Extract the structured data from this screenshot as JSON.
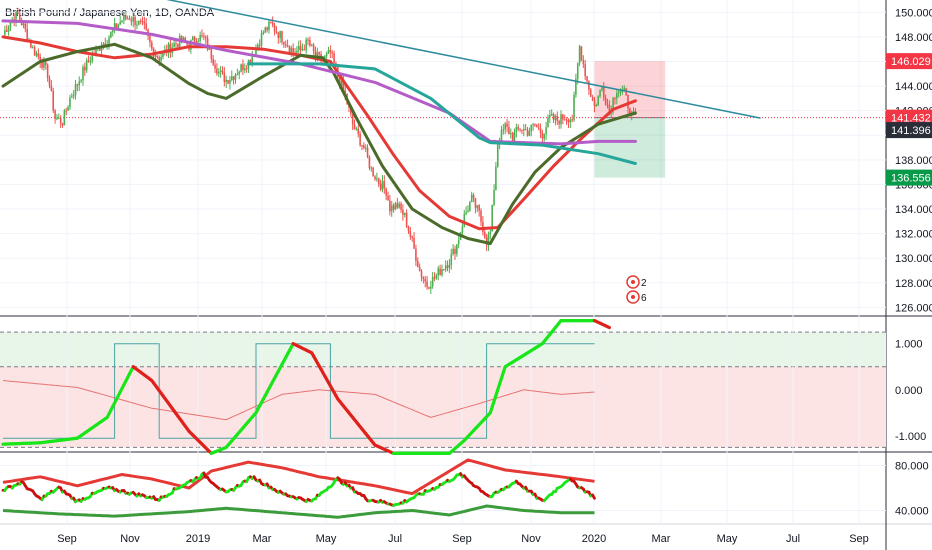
{
  "title": "British Pound / Japanese Yen, 1D, OANDA",
  "colors": {
    "up": "#4caf50",
    "down": "#ef5350",
    "ema_red": "#e53935",
    "ma_green": "#4b6b2a",
    "ma_purple": "#b45cc8",
    "ma_teal": "#26a69a",
    "trendline": "#2c8a9c",
    "ind_bright_green": "#19e619",
    "ind_red": "#e0201a",
    "ind_dark_green": "#3c9c3c",
    "price_tag_red": "#f23645",
    "price_tag_gray": "#2a2e39",
    "price_tag_green": "#089949"
  },
  "chart_data": [
    {
      "type": "candlestick",
      "title": "British Pound / Japanese Yen, 1D, OANDA",
      "y_ticks": [
        126,
        128,
        130,
        132,
        134,
        136,
        138,
        140,
        142,
        144,
        146,
        148,
        150
      ],
      "y_tick_labels": [
        "126.000",
        "128.000",
        "130.000",
        "132.000",
        "134.000",
        "136.000",
        "138.000",
        "",
        "142.000",
        "144.000",
        "146.000",
        "148.000",
        "150.000"
      ],
      "x_ticks": [
        "Sep",
        "Nov",
        "2019",
        "Mar",
        "May",
        "Jul",
        "Sep",
        "Nov",
        "2020",
        "Mar",
        "May",
        "Jul",
        "Sep"
      ],
      "ylim": [
        125.3,
        151.0
      ],
      "price_series_anchors": [
        [
          0,
          148.2
        ],
        [
          4,
          149.3
        ],
        [
          8,
          149.8
        ],
        [
          12,
          148.5
        ],
        [
          16,
          147.0
        ],
        [
          20,
          146.2
        ],
        [
          24,
          145.0
        ],
        [
          28,
          141.4
        ],
        [
          32,
          141.1
        ],
        [
          36,
          143.0
        ],
        [
          40,
          144.2
        ],
        [
          44,
          145.5
        ],
        [
          48,
          146.5
        ],
        [
          52,
          147.2
        ],
        [
          56,
          147.8
        ],
        [
          60,
          148.7
        ],
        [
          64,
          149.4
        ],
        [
          68,
          149.6
        ],
        [
          72,
          149.2
        ],
        [
          76,
          148.7
        ],
        [
          80,
          147.0
        ],
        [
          84,
          146.3
        ],
        [
          88,
          146.9
        ],
        [
          92,
          147.4
        ],
        [
          96,
          147.7
        ],
        [
          100,
          147.3
        ],
        [
          104,
          148.0
        ],
        [
          108,
          147.9
        ],
        [
          112,
          146.5
        ],
        [
          116,
          145.1
        ],
        [
          120,
          144.5
        ],
        [
          124,
          144.9
        ],
        [
          128,
          145.5
        ],
        [
          132,
          146.0
        ],
        [
          136,
          147.1
        ],
        [
          140,
          148.4
        ],
        [
          144,
          149.0
        ],
        [
          148,
          148.3
        ],
        [
          152,
          147.6
        ],
        [
          156,
          146.8
        ],
        [
          160,
          146.9
        ],
        [
          164,
          147.6
        ],
        [
          168,
          146.4
        ],
        [
          172,
          146.1
        ],
        [
          176,
          146.7
        ],
        [
          180,
          144.8
        ],
        [
          184,
          143.2
        ],
        [
          188,
          140.9
        ],
        [
          190,
          140.2
        ],
        [
          194,
          139.0
        ],
        [
          198,
          137.2
        ],
        [
          202,
          136.2
        ],
        [
          206,
          135.5
        ],
        [
          208,
          134.1
        ],
        [
          212,
          134.3
        ],
        [
          216,
          133.4
        ],
        [
          220,
          131.3
        ],
        [
          224,
          129.0
        ],
        [
          228,
          127.8
        ],
        [
          232,
          128.4
        ],
        [
          236,
          129.2
        ],
        [
          240,
          129.8
        ],
        [
          244,
          131.1
        ],
        [
          248,
          133.4
        ],
        [
          252,
          134.8
        ],
        [
          256,
          133.6
        ],
        [
          260,
          131.4
        ],
        [
          262,
          132.1
        ],
        [
          266,
          139.4
        ],
        [
          270,
          140.7
        ],
        [
          274,
          139.9
        ],
        [
          278,
          140.6
        ],
        [
          282,
          140.3
        ],
        [
          286,
          140.8
        ],
        [
          290,
          140.1
        ],
        [
          294,
          141.4
        ],
        [
          298,
          141.2
        ],
        [
          302,
          141.5
        ],
        [
          306,
          141.4
        ],
        [
          310,
          147.2
        ],
        [
          314,
          144.4
        ],
        [
          318,
          142.3
        ],
        [
          322,
          143.9
        ],
        [
          326,
          142.0
        ],
        [
          330,
          143.8
        ],
        [
          334,
          143.4
        ],
        [
          338,
          141.6
        ],
        [
          340,
          141.4
        ]
      ],
      "overlays": [
        {
          "color": "ema_red",
          "points": [
            [
              0,
              148.0
            ],
            [
              20,
              147.5
            ],
            [
              40,
              146.8
            ],
            [
              60,
              146.3
            ],
            [
              80,
              146.6
            ],
            [
              100,
              147.2
            ],
            [
              120,
              147.2
            ],
            [
              140,
              147.0
            ],
            [
              160,
              146.5
            ],
            [
              176,
              146.0
            ],
            [
              184,
              144.2
            ],
            [
              196,
              141.6
            ],
            [
              210,
              138.4
            ],
            [
              224,
              135.5
            ],
            [
              240,
              133.4
            ],
            [
              256,
              132.4
            ],
            [
              266,
              132.5
            ],
            [
              280,
              134.8
            ],
            [
              296,
              137.5
            ],
            [
              310,
              139.6
            ],
            [
              320,
              141.0
            ],
            [
              328,
              142.1
            ],
            [
              340,
              142.8
            ]
          ]
        },
        {
          "color": "ma_green",
          "points": [
            [
              0,
              144.0
            ],
            [
              20,
              146.0
            ],
            [
              40,
              146.8
            ],
            [
              60,
              147.4
            ],
            [
              80,
              146.3
            ],
            [
              100,
              144.2
            ],
            [
              110,
              143.4
            ],
            [
              120,
              143.0
            ],
            [
              140,
              144.8
            ],
            [
              160,
              146.5
            ],
            [
              172,
              146.3
            ],
            [
              178,
              145.0
            ],
            [
              190,
              141.4
            ],
            [
              204,
              137.5
            ],
            [
              220,
              134.0
            ],
            [
              236,
              132.5
            ],
            [
              250,
              131.6
            ],
            [
              262,
              131.2
            ],
            [
              274,
              134.4
            ],
            [
              286,
              137.0
            ],
            [
              300,
              139.0
            ],
            [
              320,
              140.9
            ],
            [
              340,
              141.8
            ]
          ]
        },
        {
          "color": "ma_purple",
          "points": [
            [
              0,
              149.3
            ],
            [
              40,
              149.1
            ],
            [
              80,
              148.2
            ],
            [
              120,
              146.9
            ],
            [
              160,
              145.8
            ],
            [
              200,
              144.3
            ],
            [
              240,
              141.8
            ],
            [
              262,
              139.5
            ],
            [
              280,
              139.4
            ],
            [
              300,
              139.3
            ],
            [
              320,
              139.5
            ],
            [
              340,
              139.5
            ]
          ]
        },
        {
          "color": "ma_teal",
          "points": [
            [
              132,
              145.8
            ],
            [
              170,
              145.8
            ],
            [
              200,
              145.4
            ],
            [
              230,
              143.0
            ],
            [
              256,
              139.8
            ],
            [
              262,
              139.4
            ],
            [
              290,
              139.2
            ],
            [
              320,
              138.5
            ],
            [
              340,
              137.7
            ]
          ]
        },
        {
          "color": "trendline",
          "points": [
            [
              60,
              151.9
            ],
            [
              407,
              141.4
            ]
          ]
        }
      ],
      "position_box": {
        "entry": 141.432,
        "target": 136.556,
        "stop": 146.029,
        "x_from": 318,
        "x_to": 356
      },
      "price_labels": [
        {
          "value": 146.029,
          "text": "146.029",
          "color": "price_tag_red"
        },
        {
          "value": 141.432,
          "text": "141.432",
          "color": "price_tag_red"
        },
        {
          "value": 141.396,
          "text": "141.396",
          "color": "price_tag_gray"
        },
        {
          "value": 136.556,
          "text": "136.556",
          "color": "price_tag_green"
        }
      ],
      "events": [
        {
          "label": "2",
          "icon": "earnings-circle-icon"
        },
        {
          "label": "6",
          "icon": "earnings-circle-icon"
        }
      ]
    },
    {
      "type": "line",
      "name": "oscillator",
      "y_ticks": [
        1.0,
        0.0,
        -1.0
      ],
      "y_tick_labels": [
        "1.000",
        "0.000",
        "-1.000"
      ],
      "ylim": [
        -1.35,
        1.6
      ],
      "zone_upper": [
        0.5,
        1.25
      ],
      "zone_lower": [
        -1.25,
        0.5
      ],
      "main_anchors": [
        [
          0,
          -1.18
        ],
        [
          20,
          -1.15
        ],
        [
          40,
          -1.05
        ],
        [
          56,
          -0.6
        ],
        [
          70,
          0.5
        ],
        [
          80,
          0.2
        ],
        [
          100,
          -0.9
        ],
        [
          112,
          -1.38
        ],
        [
          120,
          -1.25
        ],
        [
          136,
          -0.5
        ],
        [
          156,
          1.0
        ],
        [
          166,
          0.8
        ],
        [
          180,
          -0.2
        ],
        [
          200,
          -1.2
        ],
        [
          210,
          -1.38
        ],
        [
          240,
          -1.38
        ],
        [
          248,
          -1.1
        ],
        [
          262,
          -0.5
        ],
        [
          270,
          0.5
        ],
        [
          290,
          1.0
        ],
        [
          300,
          1.5
        ],
        [
          318,
          1.5
        ],
        [
          326,
          1.35
        ]
      ],
      "step_anchors": [
        [
          0,
          -1.05
        ],
        [
          60,
          -1.05
        ],
        [
          60,
          1.0
        ],
        [
          84,
          1.0
        ],
        [
          84,
          -1.05
        ],
        [
          136,
          -1.05
        ],
        [
          136,
          1.0
        ],
        [
          176,
          1.0
        ],
        [
          176,
          -1.05
        ],
        [
          260,
          -1.05
        ],
        [
          260,
          1.0
        ],
        [
          318,
          1.0
        ]
      ],
      "signal_anchors": [
        [
          0,
          0.2
        ],
        [
          40,
          0.05
        ],
        [
          80,
          -0.4
        ],
        [
          120,
          -0.65
        ],
        [
          150,
          -0.1
        ],
        [
          170,
          0.0
        ],
        [
          200,
          -0.1
        ],
        [
          230,
          -0.6
        ],
        [
          256,
          -0.3
        ],
        [
          280,
          0.0
        ],
        [
          300,
          -0.1
        ],
        [
          318,
          -0.05
        ]
      ]
    },
    {
      "type": "line",
      "name": "bands",
      "y_ticks": [
        80,
        40
      ],
      "y_tick_labels": [
        "80.000",
        "40.000"
      ],
      "ylim": [
        28,
        92
      ],
      "upper_anchors": [
        [
          0,
          65
        ],
        [
          20,
          70
        ],
        [
          40,
          62
        ],
        [
          64,
          72
        ],
        [
          80,
          68
        ],
        [
          100,
          60
        ],
        [
          112,
          75
        ],
        [
          132,
          83
        ],
        [
          150,
          78
        ],
        [
          170,
          70
        ],
        [
          200,
          62
        ],
        [
          220,
          55
        ],
        [
          240,
          75
        ],
        [
          250,
          85
        ],
        [
          270,
          76
        ],
        [
          300,
          70
        ],
        [
          318,
          66
        ]
      ],
      "lower_anchors": [
        [
          0,
          40
        ],
        [
          30,
          37
        ],
        [
          60,
          35
        ],
        [
          80,
          37
        ],
        [
          100,
          39
        ],
        [
          120,
          42
        ],
        [
          150,
          38
        ],
        [
          180,
          34
        ],
        [
          200,
          38
        ],
        [
          220,
          40
        ],
        [
          240,
          36
        ],
        [
          260,
          44
        ],
        [
          280,
          40
        ],
        [
          300,
          38
        ],
        [
          318,
          38
        ]
      ],
      "signal_anchors": [
        [
          0,
          58
        ],
        [
          10,
          65
        ],
        [
          20,
          50
        ],
        [
          30,
          60
        ],
        [
          40,
          48
        ],
        [
          56,
          60
        ],
        [
          70,
          55
        ],
        [
          84,
          50
        ],
        [
          96,
          62
        ],
        [
          108,
          72
        ],
        [
          120,
          55
        ],
        [
          134,
          70
        ],
        [
          150,
          55
        ],
        [
          166,
          48
        ],
        [
          180,
          68
        ],
        [
          196,
          50
        ],
        [
          212,
          45
        ],
        [
          232,
          60
        ],
        [
          246,
          72
        ],
        [
          262,
          52
        ],
        [
          276,
          66
        ],
        [
          290,
          48
        ],
        [
          304,
          68
        ],
        [
          318,
          52
        ]
      ]
    }
  ]
}
